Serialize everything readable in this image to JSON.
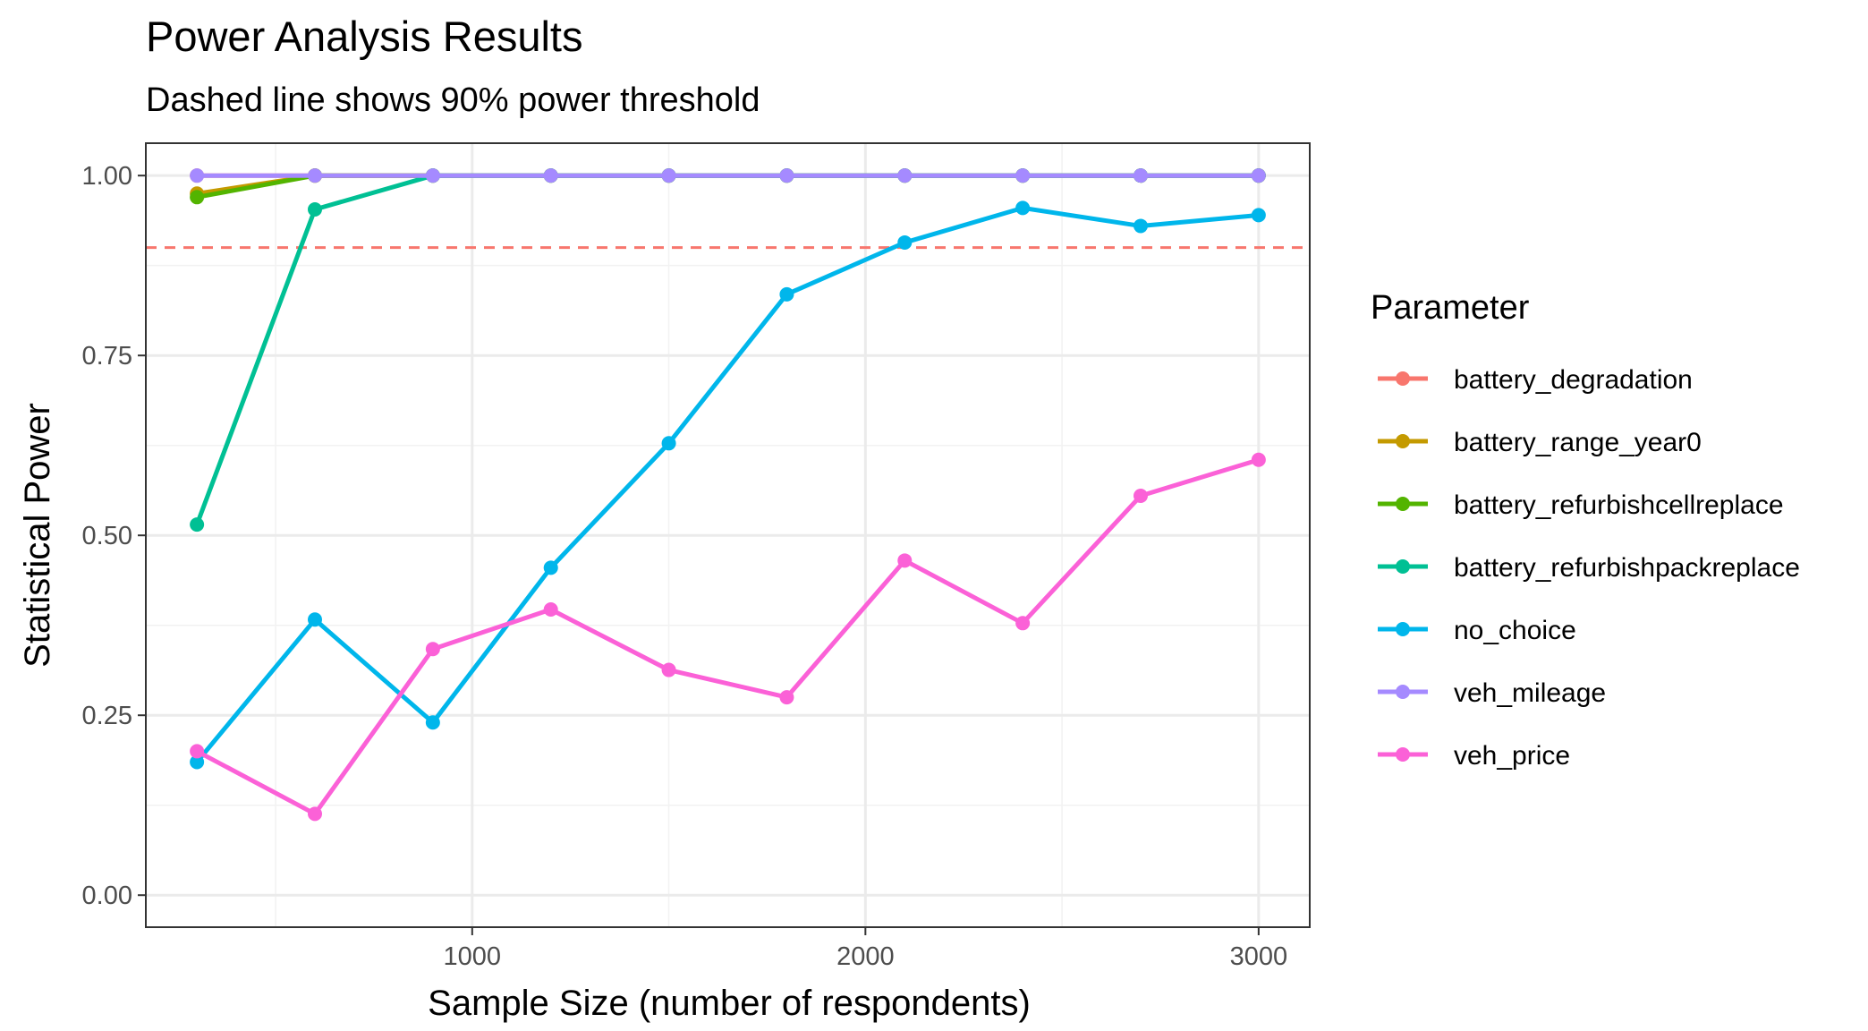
{
  "chart_data": {
    "type": "line",
    "title": "Power Analysis Results",
    "subtitle": "Dashed line shows 90% power threshold",
    "xlabel": "Sample Size (number of respondents)",
    "ylabel": "Statistical Power",
    "xlim": [
      170,
      3130
    ],
    "ylim": [
      -0.0445,
      1.045
    ],
    "x_ticks": [
      1000,
      2000,
      3000
    ],
    "x_tick_labels": [
      "1000",
      "2000",
      "3000"
    ],
    "y_ticks": [
      0,
      0.25,
      0.5,
      0.75,
      1.0
    ],
    "y_tick_labels": [
      "0.00",
      "0.25",
      "0.50",
      "0.75",
      "1.00"
    ],
    "grid": true,
    "threshold": {
      "value": 0.9,
      "style": "dashed",
      "color": "#F8766D"
    },
    "legend": {
      "title": "Parameter",
      "position": "right"
    },
    "x": [
      300,
      600,
      900,
      1200,
      1500,
      1800,
      2100,
      2400,
      2700,
      3000
    ],
    "series": [
      {
        "name": "battery_degradation",
        "color": "#F8766D",
        "values": [
          1.0,
          1.0,
          1.0,
          1.0,
          1.0,
          1.0,
          1.0,
          1.0,
          1.0,
          1.0
        ]
      },
      {
        "name": "battery_range_year0",
        "color": "#C49A00",
        "values": [
          0.975,
          1.0,
          1.0,
          1.0,
          1.0,
          1.0,
          1.0,
          1.0,
          1.0,
          1.0
        ]
      },
      {
        "name": "battery_refurbishcellreplace",
        "color": "#53B400",
        "values": [
          0.97,
          1.0,
          1.0,
          1.0,
          1.0,
          1.0,
          1.0,
          1.0,
          1.0,
          1.0
        ]
      },
      {
        "name": "battery_refurbishpackreplace",
        "color": "#00C094",
        "values": [
          0.515,
          0.953,
          1.0,
          1.0,
          1.0,
          1.0,
          1.0,
          1.0,
          1.0,
          1.0
        ]
      },
      {
        "name": "no_choice",
        "color": "#00B6EB",
        "values": [
          0.185,
          0.383,
          0.24,
          0.455,
          0.628,
          0.835,
          0.907,
          0.955,
          0.93,
          0.945
        ]
      },
      {
        "name": "veh_mileage",
        "color": "#A58AFF",
        "values": [
          1.0,
          1.0,
          1.0,
          1.0,
          1.0,
          1.0,
          1.0,
          1.0,
          1.0,
          1.0
        ]
      },
      {
        "name": "veh_price",
        "color": "#FB61D7",
        "values": [
          0.2,
          0.113,
          0.342,
          0.397,
          0.313,
          0.275,
          0.465,
          0.378,
          0.555,
          0.605
        ]
      }
    ]
  }
}
